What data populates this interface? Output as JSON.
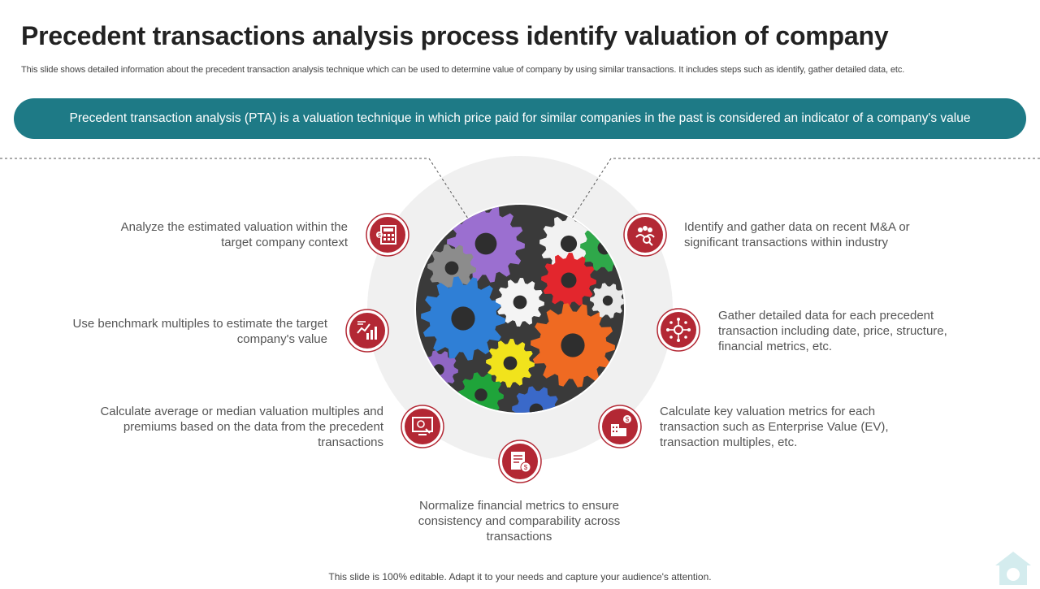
{
  "page": {
    "title": "Precedent transactions analysis process identify valuation of company",
    "subtitle": "This slide shows detailed information about the precedent transaction analysis technique which can be used to determine value of company by using similar transactions. It includes steps such as identify, gather detailed data, etc.",
    "banner": "Precedent transaction analysis (PTA) is a valuation technique in which price paid for similar companies in the past is considered an indicator of a company's value",
    "footer": "This slide is 100% editable. Adapt it to your needs and capture your audience's attention."
  },
  "steps": [
    {
      "text": "Identify and gather data on recent M&A or significant transactions within industry",
      "icon": "people-search-icon"
    },
    {
      "text": "Gather detailed data for each precedent transaction including date, price, structure, financial metrics, etc.",
      "icon": "data-network-icon"
    },
    {
      "text": "Calculate key valuation metrics for each transaction such as Enterprise Value (EV), transaction multiples, etc.",
      "icon": "building-dollar-icon"
    },
    {
      "text": "Normalize financial metrics to ensure consistency and comparability across transactions",
      "icon": "document-dollar-icon"
    },
    {
      "text": "Calculate average or median valuation multiples and premiums based on the data from the precedent transactions",
      "icon": "monitor-analysis-icon"
    },
    {
      "text": "Use benchmark multiples to estimate the target company's value",
      "icon": "growth-chart-icon"
    },
    {
      "text": "Analyze the estimated valuation within the target company context",
      "icon": "valuation-calculator-icon"
    }
  ],
  "colors": {
    "banner": "#1e7a86",
    "icon_red": "#b32834",
    "ring": "#f0f0f0"
  }
}
